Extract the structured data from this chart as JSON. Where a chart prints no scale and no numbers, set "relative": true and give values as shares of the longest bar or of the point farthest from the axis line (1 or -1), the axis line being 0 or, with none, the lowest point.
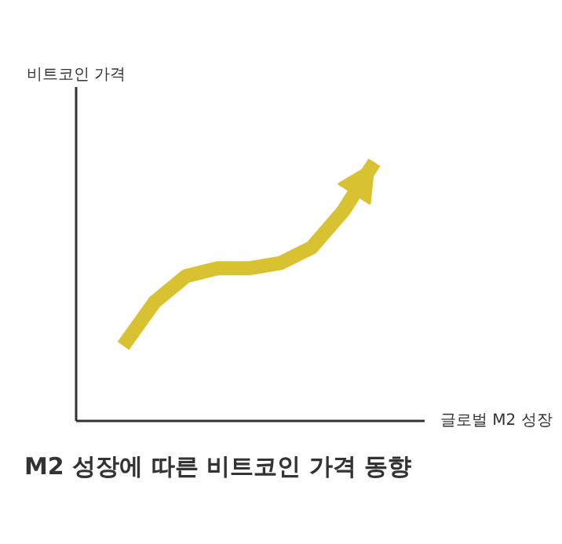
{
  "chart_data": {
    "type": "line",
    "title": "M2 성장에 따른 비트코인 가격 동향",
    "xlabel": "글로벌 M2 성장",
    "ylabel": "비트코인 가격",
    "relative": true,
    "categories": [
      null,
      null,
      null,
      null,
      null,
      null,
      null,
      null,
      null
    ],
    "series": [
      {
        "color": "#d9c232",
        "values": [
          0.29,
          0.46,
          0.56,
          0.59,
          0.59,
          0.61,
          0.67,
          0.81,
          1.0
        ]
      }
    ]
  }
}
